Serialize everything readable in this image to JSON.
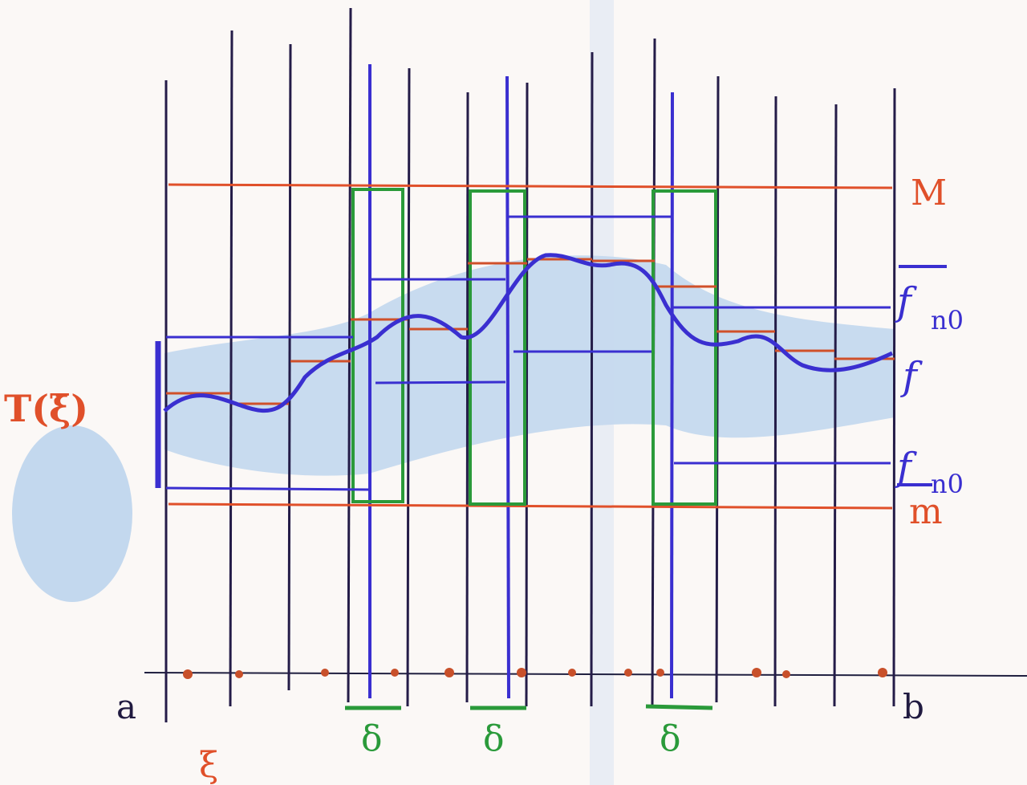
{
  "labels": {
    "M": "M",
    "upper_sum": {
      "main": "f",
      "sub": "n0"
    },
    "f": "f",
    "lower_sum": {
      "main": "f",
      "sub": "n0"
    },
    "m": "m",
    "riemann": "T(ξ̄)",
    "a": "a",
    "b": "b",
    "xi": "ξ",
    "delta": [
      "δ",
      "δ",
      "δ"
    ]
  }
}
